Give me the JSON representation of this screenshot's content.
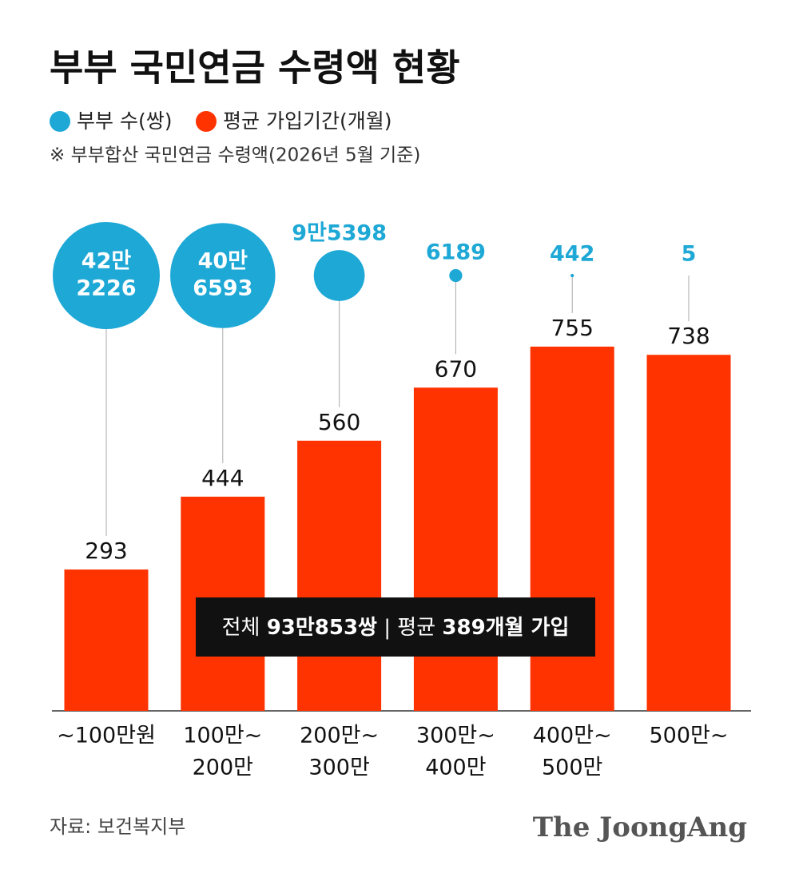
{
  "chart_data": {
    "type": "bar",
    "title": "부부 국민연금 수령액 현황",
    "note": "※ 부부합산 국민연금 수령액(2026년 5월 기준)",
    "categories": [
      [
        "~100만원"
      ],
      [
        "100만~",
        "200만"
      ],
      [
        "200만~",
        "300만"
      ],
      [
        "300만~",
        "400만"
      ],
      [
        "400만~",
        "500만"
      ],
      [
        "500만~"
      ]
    ],
    "series": [
      {
        "name": "부부 수(쌍)",
        "type": "bubble",
        "color": "#1ea8d6",
        "values": [
          422226,
          406593,
          95398,
          6189,
          442,
          5
        ],
        "value_labels": [
          [
            "42만",
            "2226"
          ],
          [
            "40만",
            "6593"
          ],
          [
            "9만5398"
          ],
          [
            "6189"
          ],
          [
            "442"
          ],
          [
            "5"
          ]
        ]
      },
      {
        "name": "평균 가입기간(개월)",
        "type": "bar",
        "color": "#ff3300",
        "values": [
          293,
          444,
          560,
          670,
          755,
          738
        ]
      }
    ],
    "annotation": [
      "전체 ",
      "93만853쌍",
      " | 평균 ",
      "389개월 가입"
    ],
    "source": "자료: 보건복지부",
    "brand": "The JoongAng"
  }
}
